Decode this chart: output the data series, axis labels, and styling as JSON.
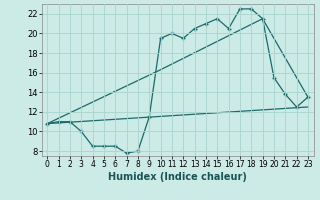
{
  "xlabel": "Humidex (Indice chaleur)",
  "background_color": "#cceae6",
  "grid_color": "#aad4cf",
  "line_color": "#1a6b6b",
  "xlim": [
    -0.5,
    23.5
  ],
  "ylim": [
    7.5,
    23.0
  ],
  "xticks": [
    0,
    1,
    2,
    3,
    4,
    5,
    6,
    7,
    8,
    9,
    10,
    11,
    12,
    13,
    14,
    15,
    16,
    17,
    18,
    19,
    20,
    21,
    22,
    23
  ],
  "yticks": [
    8,
    10,
    12,
    14,
    16,
    18,
    20,
    22
  ],
  "line1_x": [
    0,
    1,
    2,
    3,
    4,
    5,
    6,
    7,
    8,
    9,
    10,
    11,
    12,
    13,
    14,
    15,
    16,
    17,
    18,
    19,
    20,
    21,
    22,
    23
  ],
  "line1_y": [
    10.8,
    11.0,
    11.0,
    10.0,
    8.5,
    8.5,
    8.5,
    7.8,
    8.0,
    11.5,
    19.5,
    20.0,
    19.5,
    20.5,
    21.0,
    21.5,
    20.5,
    22.5,
    22.5,
    21.5,
    15.5,
    13.8,
    12.5,
    13.5
  ],
  "line2_x": [
    0,
    10,
    19,
    23
  ],
  "line2_y": [
    10.8,
    16.3,
    21.5,
    13.5
  ],
  "line3_x": [
    0,
    23
  ],
  "line3_y": [
    10.8,
    12.5
  ]
}
